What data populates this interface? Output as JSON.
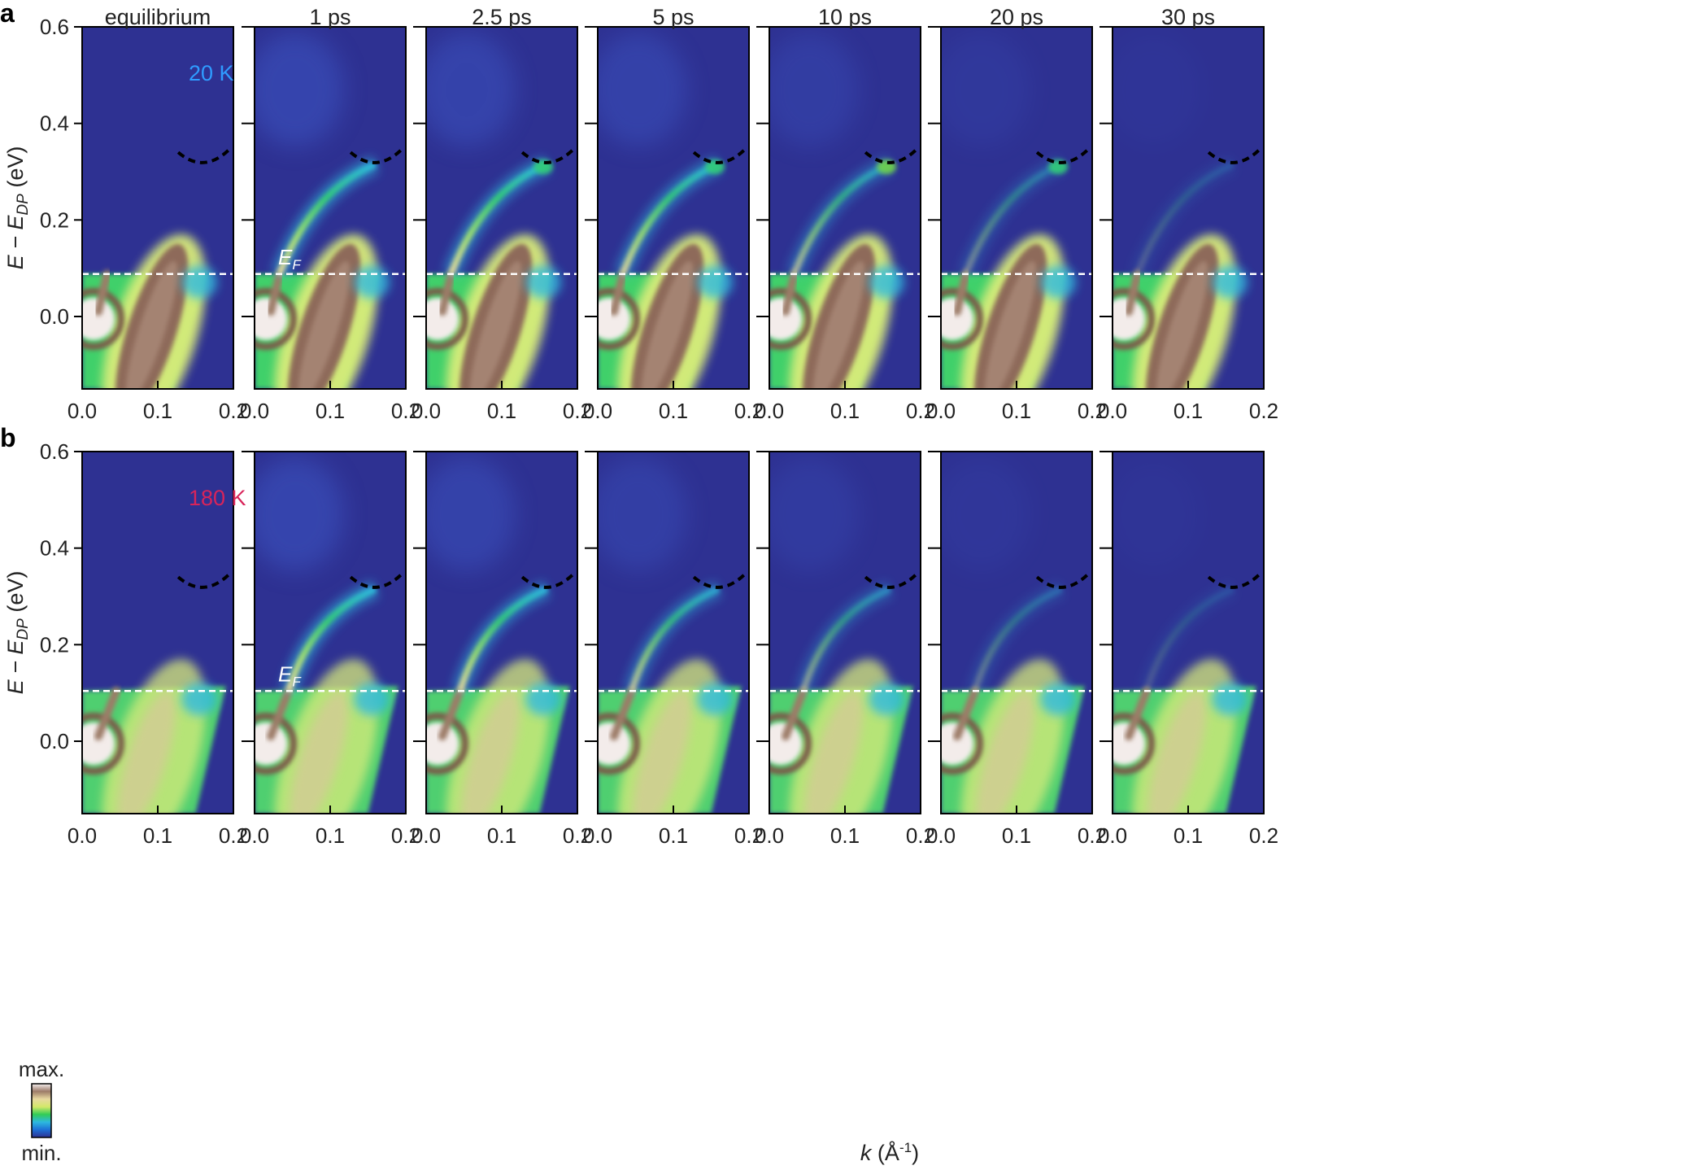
{
  "chart_data": {
    "type": "heatmap",
    "panels": [
      {
        "letter": "a",
        "temperature_label": "20 K",
        "temperature_color": "#2f9bff",
        "ef_label": "E",
        "ef_sub": "F",
        "ef_value": 0.088,
        "ylim": [
          -0.15,
          0.6
        ],
        "yticks": [
          "0.6",
          "0.4",
          "0.2",
          "0.0"
        ],
        "ytick_values": [
          0.6,
          0.4,
          0.2,
          0.0
        ]
      },
      {
        "letter": "b",
        "temperature_label": "180 K",
        "temperature_color": "#d8245a",
        "ef_label": "E",
        "ef_sub": "F",
        "ef_value": 0.104,
        "ylim": [
          -0.15,
          0.6
        ],
        "yticks": [
          "0.6",
          "0.4",
          "0.2",
          "0.0"
        ],
        "ytick_values": [
          0.6,
          0.4,
          0.2,
          0.0
        ]
      }
    ],
    "columns": [
      "equilibrium",
      "1 ps",
      "2.5 ps",
      "5 ps",
      "10 ps",
      "20 ps",
      "30 ps"
    ],
    "pump_intensity": {
      "a": [
        0.0,
        1.0,
        0.92,
        0.85,
        0.62,
        0.35,
        0.18
      ],
      "b": [
        0.0,
        1.0,
        0.88,
        0.7,
        0.48,
        0.28,
        0.15
      ]
    },
    "xlim": [
      0.0,
      0.2
    ],
    "xticks": [
      "0.0",
      "0.1",
      "0.2"
    ],
    "xtick_values": [
      0.0,
      0.1,
      0.2
    ],
    "ylabel": {
      "main": "E − E",
      "sub": "DP",
      "unit": " (eV)"
    },
    "xlabel": {
      "main": "k",
      "unit": " (Å",
      "sup": "-1",
      "close": ")"
    },
    "colorbar": {
      "max": "max.",
      "min": "min."
    },
    "colormap": [
      "#2e3192",
      "#1d6fd6",
      "#2db9e0",
      "#33cc55",
      "#d4e86a",
      "#e8d9a0",
      "#9c7b68",
      "#f4eeee"
    ],
    "background_color": "#2e3192",
    "guide_dashes_color": "#000000",
    "ef_line_color": "#ffffff"
  }
}
